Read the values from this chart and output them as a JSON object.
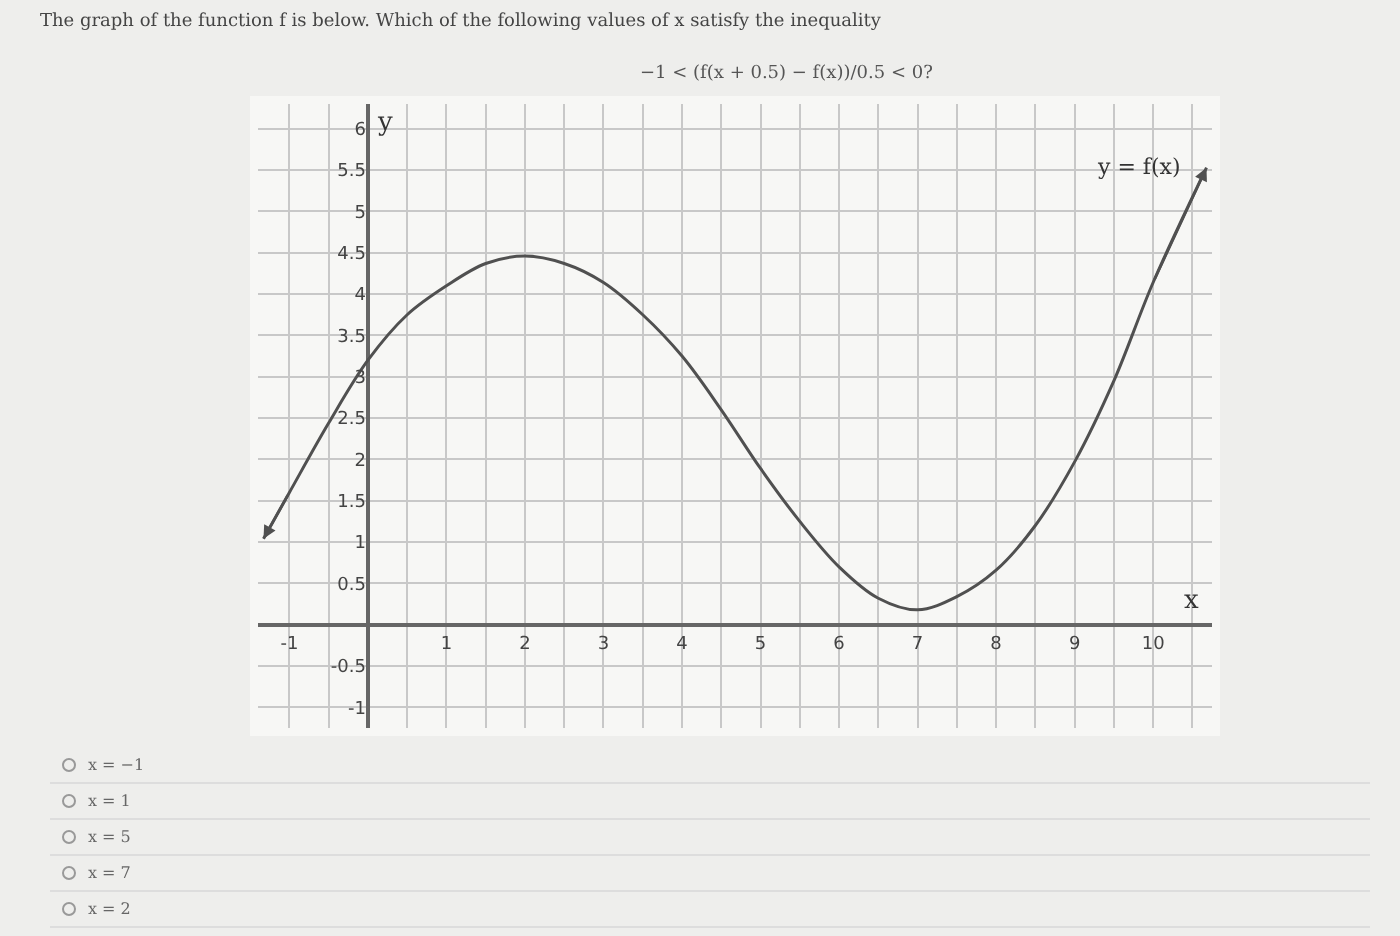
{
  "chart_data": {
    "type": "line",
    "title": "The graph of the function f is below. Which of the following values of x satisfy the inequality",
    "subtitle": "−1 < (f(x + 0.5) − f(x))/0.5 < 0?",
    "xlabel": "x",
    "ylabel": "y",
    "x": [
      -1.33,
      -1,
      -0.5,
      0,
      0.5,
      1,
      1.5,
      2,
      2.5,
      3,
      3.5,
      4,
      4.5,
      5,
      5.5,
      6,
      6.5,
      7,
      7.5,
      8,
      8.5,
      9,
      9.5,
      10,
      10.68
    ],
    "series": [
      {
        "name": "y = f(x)",
        "color": "#505050",
        "values": [
          1.04,
          1.6,
          2.44,
          3.2,
          3.75,
          4.1,
          4.37,
          4.46,
          4.37,
          4.14,
          3.75,
          3.25,
          2.6,
          1.89,
          1.25,
          0.7,
          0.32,
          0.18,
          0.34,
          0.66,
          1.2,
          1.97,
          2.95,
          4.14,
          5.53
        ]
      }
    ],
    "xlim": [
      -1.4,
      10.75
    ],
    "ylim": [
      -1.25,
      6.3
    ],
    "xticks": [
      -1,
      {
        "value": -0.5,
        "label": null
      },
      {
        "value": 0,
        "label": null
      },
      {
        "value": 0.5,
        "label": null
      },
      1,
      {
        "value": 1.5,
        "label": null
      },
      2,
      {
        "value": 2.5,
        "label": null
      },
      3,
      {
        "value": 3.5,
        "label": null
      },
      4,
      {
        "value": 4.5,
        "label": null
      },
      5,
      {
        "value": 5.5,
        "label": null
      },
      6,
      {
        "value": 6.5,
        "label": null
      },
      7,
      {
        "value": 7.5,
        "label": null
      },
      8,
      {
        "value": 8.5,
        "label": null
      },
      9,
      {
        "value": 9.5,
        "label": null
      },
      10,
      {
        "value": 10.5,
        "label": null
      }
    ],
    "yticks": [
      -1,
      -0.5,
      {
        "value": 0,
        "label": null
      },
      0.5,
      1,
      1.5,
      2,
      2.5,
      3,
      3.5,
      4,
      4.5,
      5,
      5.5,
      6
    ],
    "grid": true,
    "marker": "none",
    "line_style": "solid",
    "legend": "top right",
    "annotations": [
      "x = −1",
      "x = 1",
      "x = 5",
      "x = 7",
      "x = 2"
    ]
  }
}
